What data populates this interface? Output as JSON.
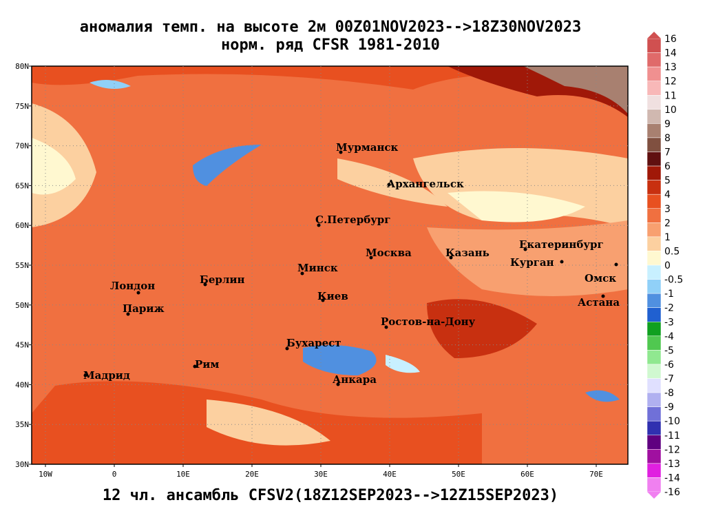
{
  "title": "аномалия темп. на высоте 2м 00Z01NOV2023-->18Z30NOV2023",
  "subtitle": "норм. ряд CFSR 1981-2010",
  "footer": "12 чл. ансамбль CFSV2(18Z12SEP2023-->12Z15SEP2023)",
  "lat_labels": [
    "80N",
    "75N",
    "70N",
    "65N",
    "60N",
    "55N",
    "50N",
    "45N",
    "40N",
    "35N",
    "30N"
  ],
  "lon_labels": [
    "10W",
    "0",
    "10E",
    "20E",
    "30E",
    "40E",
    "50E",
    "60E",
    "70E"
  ],
  "cities": [
    "Мурманск",
    "Архангельск",
    "С.Петербург",
    "Москва",
    "Казань",
    "Екатеринбург",
    "Курган",
    "Омск",
    "Астана",
    "Минск",
    "Берлин",
    "Лондон",
    "Париж",
    "Киев",
    "Ростов-на-Дону",
    "Бухарест",
    "Рим",
    "Мадрид",
    "Анкара"
  ],
  "colorbar": {
    "labels": [
      "16",
      "14",
      "13",
      "12",
      "11",
      "10",
      "9",
      "8",
      "7",
      "6",
      "5",
      "4",
      "3",
      "2",
      "1",
      "0.5",
      "0",
      "-0.5",
      "-1",
      "-2",
      "-3",
      "-4",
      "-5",
      "-6",
      "-7",
      "-8",
      "-9",
      "-10",
      "-11",
      "-12",
      "-13",
      "-14",
      "-16"
    ],
    "colors": [
      "#d05050",
      "#e06a6a",
      "#f09090",
      "#f8b8b8",
      "#f0e0e0",
      "#d0b8b0",
      "#a88070",
      "#805040",
      "#601010",
      "#a01808",
      "#c83010",
      "#e85020",
      "#f07040",
      "#f8a070",
      "#fcd0a0",
      "#fff8d0",
      "#c8f0ff",
      "#90d0f8",
      "#5090e0",
      "#2060d0",
      "#10a020",
      "#50c850",
      "#90e890",
      "#d0f8d0",
      "#e0e0ff",
      "#b0b0f0",
      "#7070d8",
      "#3030b0",
      "#600080",
      "#a010a0",
      "#e020e0",
      "#f080f0"
    ]
  }
}
